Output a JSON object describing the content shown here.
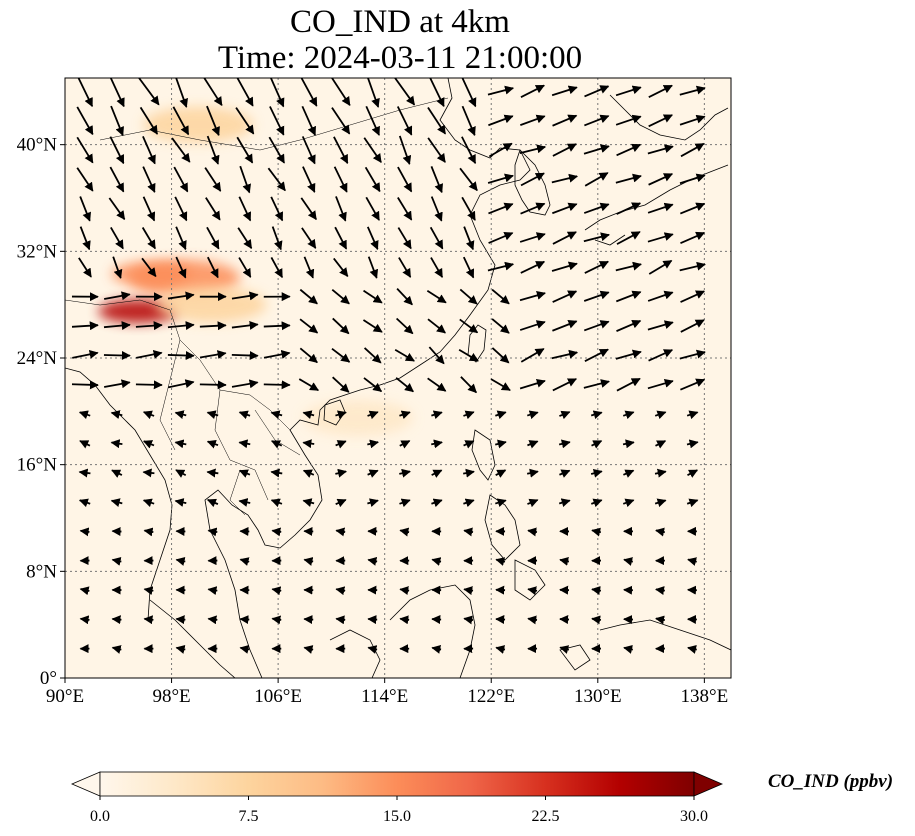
{
  "title": {
    "line1": "CO_IND at 4km",
    "line2": "Time: 2024-03-11 21:00:00"
  },
  "map": {
    "lon_range": [
      90,
      140
    ],
    "lat_range": [
      0,
      45
    ],
    "lon_ticks": [
      "90°E",
      "98°E",
      "106°E",
      "114°E",
      "122°E",
      "130°E",
      "138°E"
    ],
    "lon_tick_values": [
      90,
      98,
      106,
      114,
      122,
      130,
      138
    ],
    "lat_ticks": [
      "0°",
      "8°N",
      "16°N",
      "24°N",
      "32°N",
      "40°N"
    ],
    "lat_tick_values": [
      0,
      8,
      16,
      24,
      32,
      40
    ],
    "gridlines": "dotted",
    "background_color": "#fff5e6",
    "hotspots": [
      {
        "lon": 95.5,
        "lat": 27.5,
        "value": 25
      },
      {
        "lon": 96.5,
        "lat": 30.3,
        "value": 16
      },
      {
        "lon": 99,
        "lat": 30,
        "value": 14
      },
      {
        "lon": 101,
        "lat": 28,
        "value": 8
      },
      {
        "lon": 100,
        "lat": 41.5,
        "value": 6
      },
      {
        "lon": 112,
        "lat": 19.5,
        "value": 5
      }
    ]
  },
  "colorbar": {
    "min": 0.0,
    "max": 30.0,
    "ticks": [
      "0.0",
      "7.5",
      "15.0",
      "22.5",
      "30.0"
    ],
    "tick_values": [
      0,
      7.5,
      15,
      22.5,
      30
    ],
    "label": "CO_IND (ppbv)",
    "colormap": "OrRd",
    "extend": "both",
    "colors": [
      "#fff7ec",
      "#fee8c8",
      "#fdd49e",
      "#fdbb84",
      "#fc8d59",
      "#ef6548",
      "#d7301f",
      "#b30000",
      "#7f0000"
    ]
  }
}
